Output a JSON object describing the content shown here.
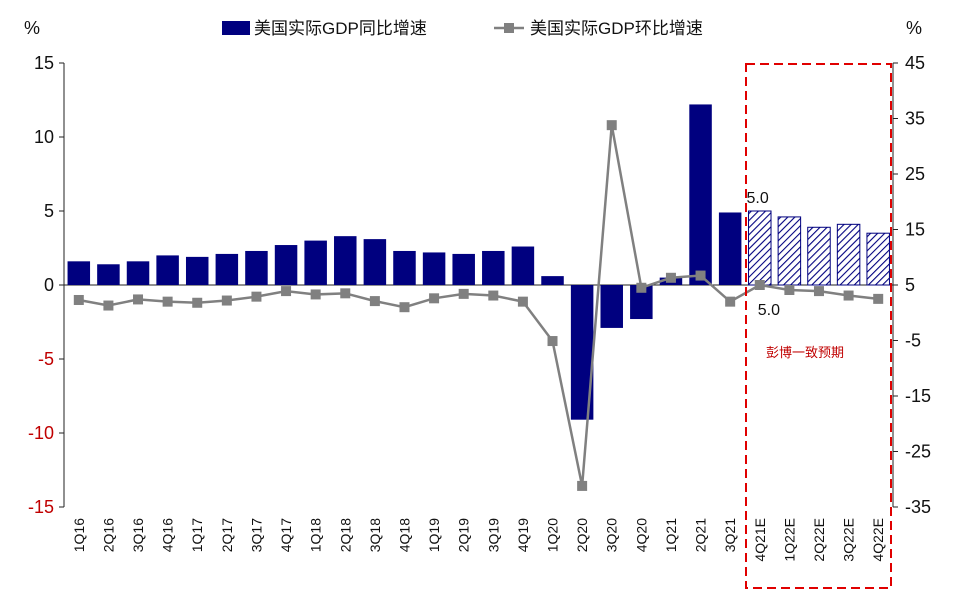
{
  "chart_data": {
    "type": "bar+line",
    "categories": [
      "1Q16",
      "2Q16",
      "3Q16",
      "4Q16",
      "1Q17",
      "2Q17",
      "3Q17",
      "4Q17",
      "1Q18",
      "2Q18",
      "3Q18",
      "4Q18",
      "1Q19",
      "2Q19",
      "3Q19",
      "4Q19",
      "1Q20",
      "2Q20",
      "3Q20",
      "4Q20",
      "1Q21",
      "2Q21",
      "3Q21",
      "4Q21E",
      "1Q22E",
      "2Q22E",
      "3Q22E",
      "4Q22E"
    ],
    "series": [
      {
        "name": "美国实际GDP同比增速",
        "type": "bar",
        "axis": "left",
        "color": "#00007f",
        "forecast_from": "4Q21E",
        "values": [
          1.6,
          1.4,
          1.6,
          2.0,
          1.9,
          2.1,
          2.3,
          2.7,
          3.0,
          3.3,
          3.1,
          2.3,
          2.2,
          2.1,
          2.3,
          2.6,
          0.6,
          -9.1,
          -2.9,
          -2.3,
          0.5,
          12.2,
          4.9,
          5.0,
          4.6,
          3.9,
          4.1,
          3.5
        ]
      },
      {
        "name": "美国实际GDP环比增速",
        "type": "line",
        "axis": "right",
        "color": "#808080",
        "values": [
          2.3,
          1.3,
          2.4,
          2.0,
          1.8,
          2.2,
          2.9,
          3.9,
          3.3,
          3.5,
          2.1,
          1.0,
          2.6,
          3.4,
          3.1,
          2.0,
          -5.1,
          -31.2,
          33.8,
          4.5,
          6.3,
          6.7,
          2.0,
          5.0,
          4.1,
          3.9,
          3.1,
          2.5
        ]
      }
    ],
    "y_left": {
      "unit": "%",
      "ylim": [
        -15,
        15
      ],
      "ticks": [
        "15",
        "10",
        "5",
        "0",
        "-5",
        "-10",
        "-15"
      ]
    },
    "y_right": {
      "unit": "%",
      "ylim": [
        -35,
        45
      ],
      "ticks": [
        "45",
        "35",
        "25",
        "15",
        "5",
        "-5",
        "-15",
        "-25",
        "-35"
      ]
    },
    "data_labels": {
      "bar_label": "5.0",
      "line_label": "5.0"
    },
    "annotation": "彭博一致预期",
    "colors": {
      "negative_tick": "#c00000",
      "positive_tick": "#111111",
      "forecast_box": "#e00000",
      "hatch": "#00007f"
    },
    "legend_position": "top"
  }
}
